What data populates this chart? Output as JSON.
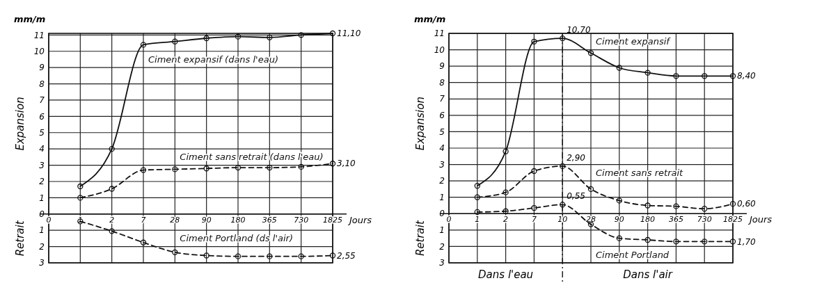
{
  "chart_data": [
    {
      "type": "line",
      "ylabel": "Expansion",
      "xlabel": "Jours",
      "annotations": [
        "mm/m",
        "Retrait",
        {
          "text": "2,55",
          "x": "1825",
          "y": -2.55
        }
      ],
      "categories": [
        "0",
        "1",
        "2",
        "7",
        "28",
        "90",
        "180",
        "365",
        "730",
        "1825"
      ],
      "ylim": [
        -3,
        11.1
      ],
      "yticks": [
        {
          "value": -3,
          "label": "3"
        },
        {
          "value": -2,
          "label": "2"
        },
        {
          "value": -1,
          "label": "1"
        },
        0,
        1,
        2,
        3,
        4,
        5,
        6,
        7,
        8,
        9,
        10,
        11
      ],
      "grid": true,
      "legend": false,
      "marker": "circle",
      "series": [
        {
          "name": "Ciment expansif (dans l'eau)",
          "color": "#111111",
          "line_style": "solid",
          "values": [
            null,
            1.7,
            4.0,
            10.4,
            10.6,
            10.8,
            10.9,
            10.85,
            11.0,
            11.1
          ],
          "value_labels": [
            null,
            null,
            null,
            null,
            null,
            null,
            null,
            null,
            null,
            "11,10"
          ]
        },
        {
          "name": "Ciment sans retrait (dans l'eau)",
          "color": "#111111",
          "line_style": "dashed",
          "values": [
            null,
            1.0,
            1.55,
            2.7,
            2.75,
            2.8,
            2.85,
            2.85,
            2.9,
            3.1
          ],
          "value_labels": [
            null,
            null,
            null,
            null,
            null,
            null,
            null,
            null,
            null,
            "3,10"
          ]
        },
        {
          "name": "Ciment Portland (ds l'air)",
          "color": "#111111",
          "line_style": "dashed",
          "values": [
            null,
            -0.45,
            -1.05,
            -1.75,
            -2.35,
            -2.55,
            -2.6,
            -2.6,
            -2.6,
            -2.55
          ]
        }
      ]
    },
    {
      "type": "line",
      "ylabel": "Expansion",
      "xlabel": "Jours",
      "annotations": [
        "mm/m",
        "Retrait",
        "Dans l'eau",
        "Dans l'air",
        {
          "text": "1,70",
          "x": "1825",
          "y": -1.7
        }
      ],
      "categories": [
        "0",
        "1",
        "2",
        "7",
        "10",
        "28",
        "90",
        "180",
        "365",
        "730",
        "1825"
      ],
      "ylim": [
        -3,
        11
      ],
      "yticks": [
        {
          "value": -3,
          "label": "3"
        },
        {
          "value": -2,
          "label": "2"
        },
        {
          "value": -1,
          "label": "1"
        },
        0,
        1,
        2,
        3,
        4,
        5,
        6,
        7,
        8,
        9,
        10,
        11
      ],
      "grid": true,
      "legend": false,
      "marker": "circle",
      "ref_lines": [
        {
          "axis": "x",
          "value": "10",
          "line_style": "dashdot",
          "color": "#111111"
        }
      ],
      "series": [
        {
          "name": "Ciment expansif",
          "color": "#111111",
          "line_style": "solid",
          "values": [
            null,
            1.7,
            3.8,
            10.5,
            10.7,
            9.8,
            8.9,
            8.6,
            8.4,
            8.4,
            8.4
          ],
          "value_labels": [
            null,
            null,
            null,
            null,
            "10,70",
            null,
            null,
            null,
            null,
            null,
            "8,40"
          ]
        },
        {
          "name": "Ciment sans retrait",
          "color": "#111111",
          "line_style": "dashed",
          "values": [
            null,
            1.0,
            1.3,
            2.6,
            2.9,
            1.5,
            0.8,
            0.5,
            0.45,
            0.3,
            0.6
          ],
          "value_labels": [
            null,
            null,
            null,
            null,
            "2,90",
            null,
            null,
            null,
            null,
            null,
            "0,60"
          ]
        },
        {
          "name": "Ciment Portland",
          "color": "#111111",
          "line_style": "dashed",
          "values": [
            null,
            0.1,
            0.15,
            0.35,
            0.55,
            -0.65,
            -1.5,
            -1.6,
            -1.7,
            -1.7,
            -1.7
          ],
          "value_labels": [
            null,
            null,
            null,
            null,
            "0,55",
            null,
            null,
            null,
            null,
            null,
            null
          ]
        }
      ]
    }
  ]
}
